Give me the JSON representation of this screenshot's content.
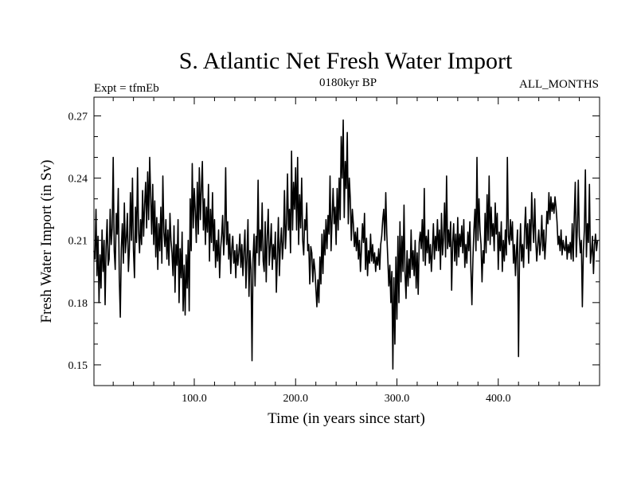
{
  "chart_data": {
    "type": "line",
    "title": "S. Atlantic Net Fresh Water Import",
    "subtitle": "0180kyr BP",
    "header_left": "Expt = tfmEb",
    "header_right": "ALL_MONTHS",
    "xlabel": "Time (in years since start)",
    "ylabel": "Fresh Water Import (in Sv)",
    "xlim": [
      1,
      500
    ],
    "ylim": [
      0.14,
      0.279
    ],
    "x_ticks": [
      100,
      200,
      300,
      400
    ],
    "x_tick_labels": [
      "100.0",
      "200.0",
      "300.0",
      "400.0"
    ],
    "y_ticks": [
      0.15,
      0.18,
      0.21,
      0.24,
      0.27
    ],
    "y_tick_labels": [
      "0.15",
      "0.18",
      "0.21",
      "0.24",
      "0.27"
    ],
    "grid": false,
    "series": [
      {
        "x_start": 1,
        "x_step": 1,
        "line_color": "#000000",
        "values": [
          0.205,
          0.201,
          0.225,
          0.193,
          0.212,
          0.18,
          0.203,
          0.187,
          0.215,
          0.195,
          0.21,
          0.179,
          0.207,
          0.22,
          0.198,
          0.201,
          0.225,
          0.208,
          0.216,
          0.25,
          0.205,
          0.196,
          0.223,
          0.213,
          0.235,
          0.192,
          0.173,
          0.206,
          0.218,
          0.199,
          0.228,
          0.204,
          0.211,
          0.223,
          0.195,
          0.206,
          0.233,
          0.21,
          0.24,
          0.205,
          0.192,
          0.226,
          0.209,
          0.245,
          0.215,
          0.204,
          0.22,
          0.208,
          0.234,
          0.212,
          0.227,
          0.238,
          0.216,
          0.243,
          0.22,
          0.25,
          0.231,
          0.213,
          0.237,
          0.208,
          0.229,
          0.202,
          0.221,
          0.196,
          0.218,
          0.205,
          0.226,
          0.199,
          0.241,
          0.214,
          0.207,
          0.22,
          0.201,
          0.215,
          0.198,
          0.223,
          0.21,
          0.204,
          0.193,
          0.217,
          0.185,
          0.208,
          0.198,
          0.22,
          0.18,
          0.206,
          0.192,
          0.214,
          0.176,
          0.198,
          0.174,
          0.203,
          0.187,
          0.21,
          0.176,
          0.23,
          0.205,
          0.247,
          0.216,
          0.235,
          0.224,
          0.209,
          0.238,
          0.213,
          0.245,
          0.22,
          0.235,
          0.248,
          0.215,
          0.23,
          0.208,
          0.226,
          0.214,
          0.237,
          0.2,
          0.225,
          0.209,
          0.233,
          0.205,
          0.22,
          0.197,
          0.21,
          0.2,
          0.215,
          0.192,
          0.206,
          0.212,
          0.222,
          0.203,
          0.214,
          0.245,
          0.208,
          0.219,
          0.201,
          0.213,
          0.194,
          0.206,
          0.212,
          0.199,
          0.205,
          0.192,
          0.208,
          0.198,
          0.204,
          0.213,
          0.197,
          0.208,
          0.193,
          0.205,
          0.215,
          0.187,
          0.202,
          0.22,
          0.183,
          0.205,
          0.196,
          0.152,
          0.201,
          0.213,
          0.188,
          0.212,
          0.204,
          0.239,
          0.198,
          0.215,
          0.205,
          0.228,
          0.2,
          0.195,
          0.219,
          0.19,
          0.212,
          0.225,
          0.198,
          0.207,
          0.218,
          0.196,
          0.208,
          0.201,
          0.214,
          0.185,
          0.202,
          0.221,
          0.193,
          0.208,
          0.216,
          0.201,
          0.21,
          0.234,
          0.206,
          0.218,
          0.242,
          0.215,
          0.225,
          0.204,
          0.253,
          0.215,
          0.238,
          0.225,
          0.245,
          0.215,
          0.25,
          0.208,
          0.232,
          0.216,
          0.24,
          0.21,
          0.203,
          0.22,
          0.215,
          0.228,
          0.205,
          0.208,
          0.189,
          0.207,
          0.204,
          0.19,
          0.201,
          0.196,
          0.187,
          0.178,
          0.191,
          0.18,
          0.202,
          0.189,
          0.213,
          0.194,
          0.215,
          0.203,
          0.22,
          0.206,
          0.222,
          0.213,
          0.241,
          0.205,
          0.22,
          0.235,
          0.218,
          0.226,
          0.208,
          0.235,
          0.215,
          0.24,
          0.22,
          0.26,
          0.24,
          0.268,
          0.221,
          0.248,
          0.235,
          0.262,
          0.218,
          0.24,
          0.23,
          0.21,
          0.225,
          0.218,
          0.207,
          0.214,
          0.205,
          0.216,
          0.201,
          0.21,
          0.195,
          0.206,
          0.218,
          0.209,
          0.223,
          0.196,
          0.211,
          0.193,
          0.205,
          0.199,
          0.213,
          0.2,
          0.208,
          0.199,
          0.204,
          0.195,
          0.202,
          0.198,
          0.206,
          0.196,
          0.208,
          0.212,
          0.22,
          0.225,
          0.21,
          0.233,
          0.213,
          0.201,
          0.188,
          0.198,
          0.18,
          0.195,
          0.148,
          0.192,
          0.16,
          0.202,
          0.172,
          0.212,
          0.18,
          0.219,
          0.19,
          0.212,
          0.195,
          0.227,
          0.194,
          0.182,
          0.205,
          0.188,
          0.201,
          0.192,
          0.215,
          0.196,
          0.205,
          0.193,
          0.21,
          0.187,
          0.204,
          0.184,
          0.209,
          0.214,
          0.206,
          0.22,
          0.2,
          0.235,
          0.198,
          0.212,
          0.204,
          0.215,
          0.199,
          0.208,
          0.195,
          0.205,
          0.218,
          0.201,
          0.212,
          0.205,
          0.22,
          0.205,
          0.215,
          0.196,
          0.223,
          0.203,
          0.211,
          0.228,
          0.202,
          0.241,
          0.206,
          0.215,
          0.207,
          0.219,
          0.186,
          0.209,
          0.218,
          0.2,
          0.213,
          0.198,
          0.221,
          0.202,
          0.213,
          0.207,
          0.217,
          0.204,
          0.22,
          0.197,
          0.208,
          0.199,
          0.214,
          0.205,
          0.219,
          0.196,
          0.179,
          0.201,
          0.215,
          0.225,
          0.205,
          0.25,
          0.21,
          0.23,
          0.215,
          0.208,
          0.19,
          0.205,
          0.199,
          0.223,
          0.204,
          0.232,
          0.21,
          0.241,
          0.208,
          0.226,
          0.212,
          0.218,
          0.205,
          0.228,
          0.213,
          0.223,
          0.196,
          0.214,
          0.205,
          0.219,
          0.195,
          0.21,
          0.2,
          0.215,
          0.203,
          0.25,
          0.212,
          0.208,
          0.22,
          0.21,
          0.219,
          0.199,
          0.208,
          0.193,
          0.205,
          0.215,
          0.154,
          0.203,
          0.218,
          0.2,
          0.208,
          0.197,
          0.215,
          0.226,
          0.206,
          0.218,
          0.199,
          0.22,
          0.205,
          0.233,
          0.218,
          0.209,
          0.23,
          0.21,
          0.2,
          0.208,
          0.215,
          0.203,
          0.209,
          0.222,
          0.205,
          0.215,
          0.201,
          0.21,
          0.224,
          0.218,
          0.233,
          0.22,
          0.231,
          0.224,
          0.228,
          0.223,
          0.231,
          0.226,
          0.219,
          0.208,
          0.212,
          0.205,
          0.215,
          0.203,
          0.21,
          0.206,
          0.205,
          0.212,
          0.201,
          0.208,
          0.204,
          0.209,
          0.201,
          0.218,
          0.2,
          0.221,
          0.238,
          0.202,
          0.215,
          0.239,
          0.212,
          0.204,
          0.21,
          0.178,
          0.205,
          0.215,
          0.244,
          0.202,
          0.218,
          0.209,
          0.237,
          0.199,
          0.204,
          0.212,
          0.194,
          0.208,
          0.213,
          0.205,
          0.21
        ]
      }
    ]
  }
}
